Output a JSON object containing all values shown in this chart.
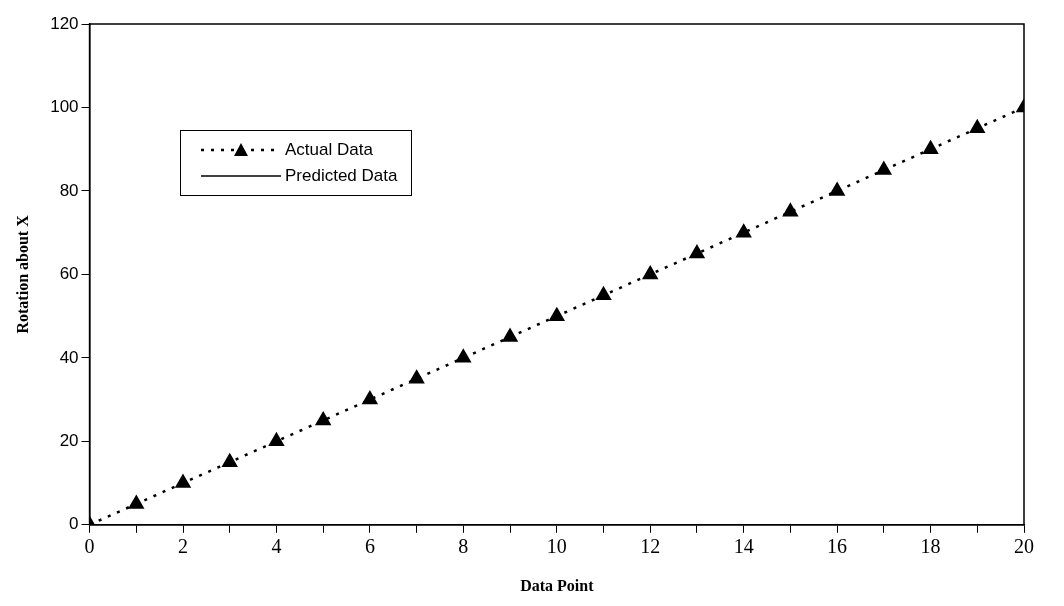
{
  "chart_data": {
    "type": "line",
    "xlabel": "Data Point",
    "ylabel": "Rotation about X",
    "x": [
      0,
      1,
      2,
      3,
      4,
      5,
      6,
      7,
      8,
      9,
      10,
      11,
      12,
      13,
      14,
      15,
      16,
      17,
      18,
      19,
      20
    ],
    "series": [
      {
        "name": "Actual Data",
        "color": "#000000",
        "values": [
          0,
          5,
          10,
          15,
          20,
          25,
          30,
          35,
          40,
          45,
          50,
          55,
          60,
          65,
          70,
          75,
          80,
          85,
          90,
          95,
          100
        ],
        "marker": "triangle",
        "line_style": "dotted"
      },
      {
        "name": "Predicted Data",
        "color": "#000000",
        "values": [
          null,
          null,
          null,
          null,
          null,
          null,
          null,
          null,
          null,
          null,
          null,
          null,
          null,
          null,
          null,
          null,
          null,
          null,
          null,
          null,
          null
        ],
        "marker": "none",
        "line_style": "solid"
      }
    ],
    "xlim": [
      0,
      20
    ],
    "xticks": [
      0,
      {
        "value": 1,
        "label": null
      },
      2,
      {
        "value": 3,
        "label": null
      },
      4,
      {
        "value": 5,
        "label": null
      },
      6,
      {
        "value": 7,
        "label": null
      },
      8,
      {
        "value": 9,
        "label": null
      },
      10,
      {
        "value": 11,
        "label": null
      },
      12,
      {
        "value": 13,
        "label": null
      },
      14,
      {
        "value": 15,
        "label": null
      },
      16,
      {
        "value": 17,
        "label": null
      },
      18,
      {
        "value": 19,
        "label": null
      },
      20
    ],
    "ylim": [
      0,
      120
    ],
    "yticks": [
      0,
      20,
      40,
      60,
      80,
      100,
      120
    ],
    "grid": false,
    "legend": "top left"
  }
}
